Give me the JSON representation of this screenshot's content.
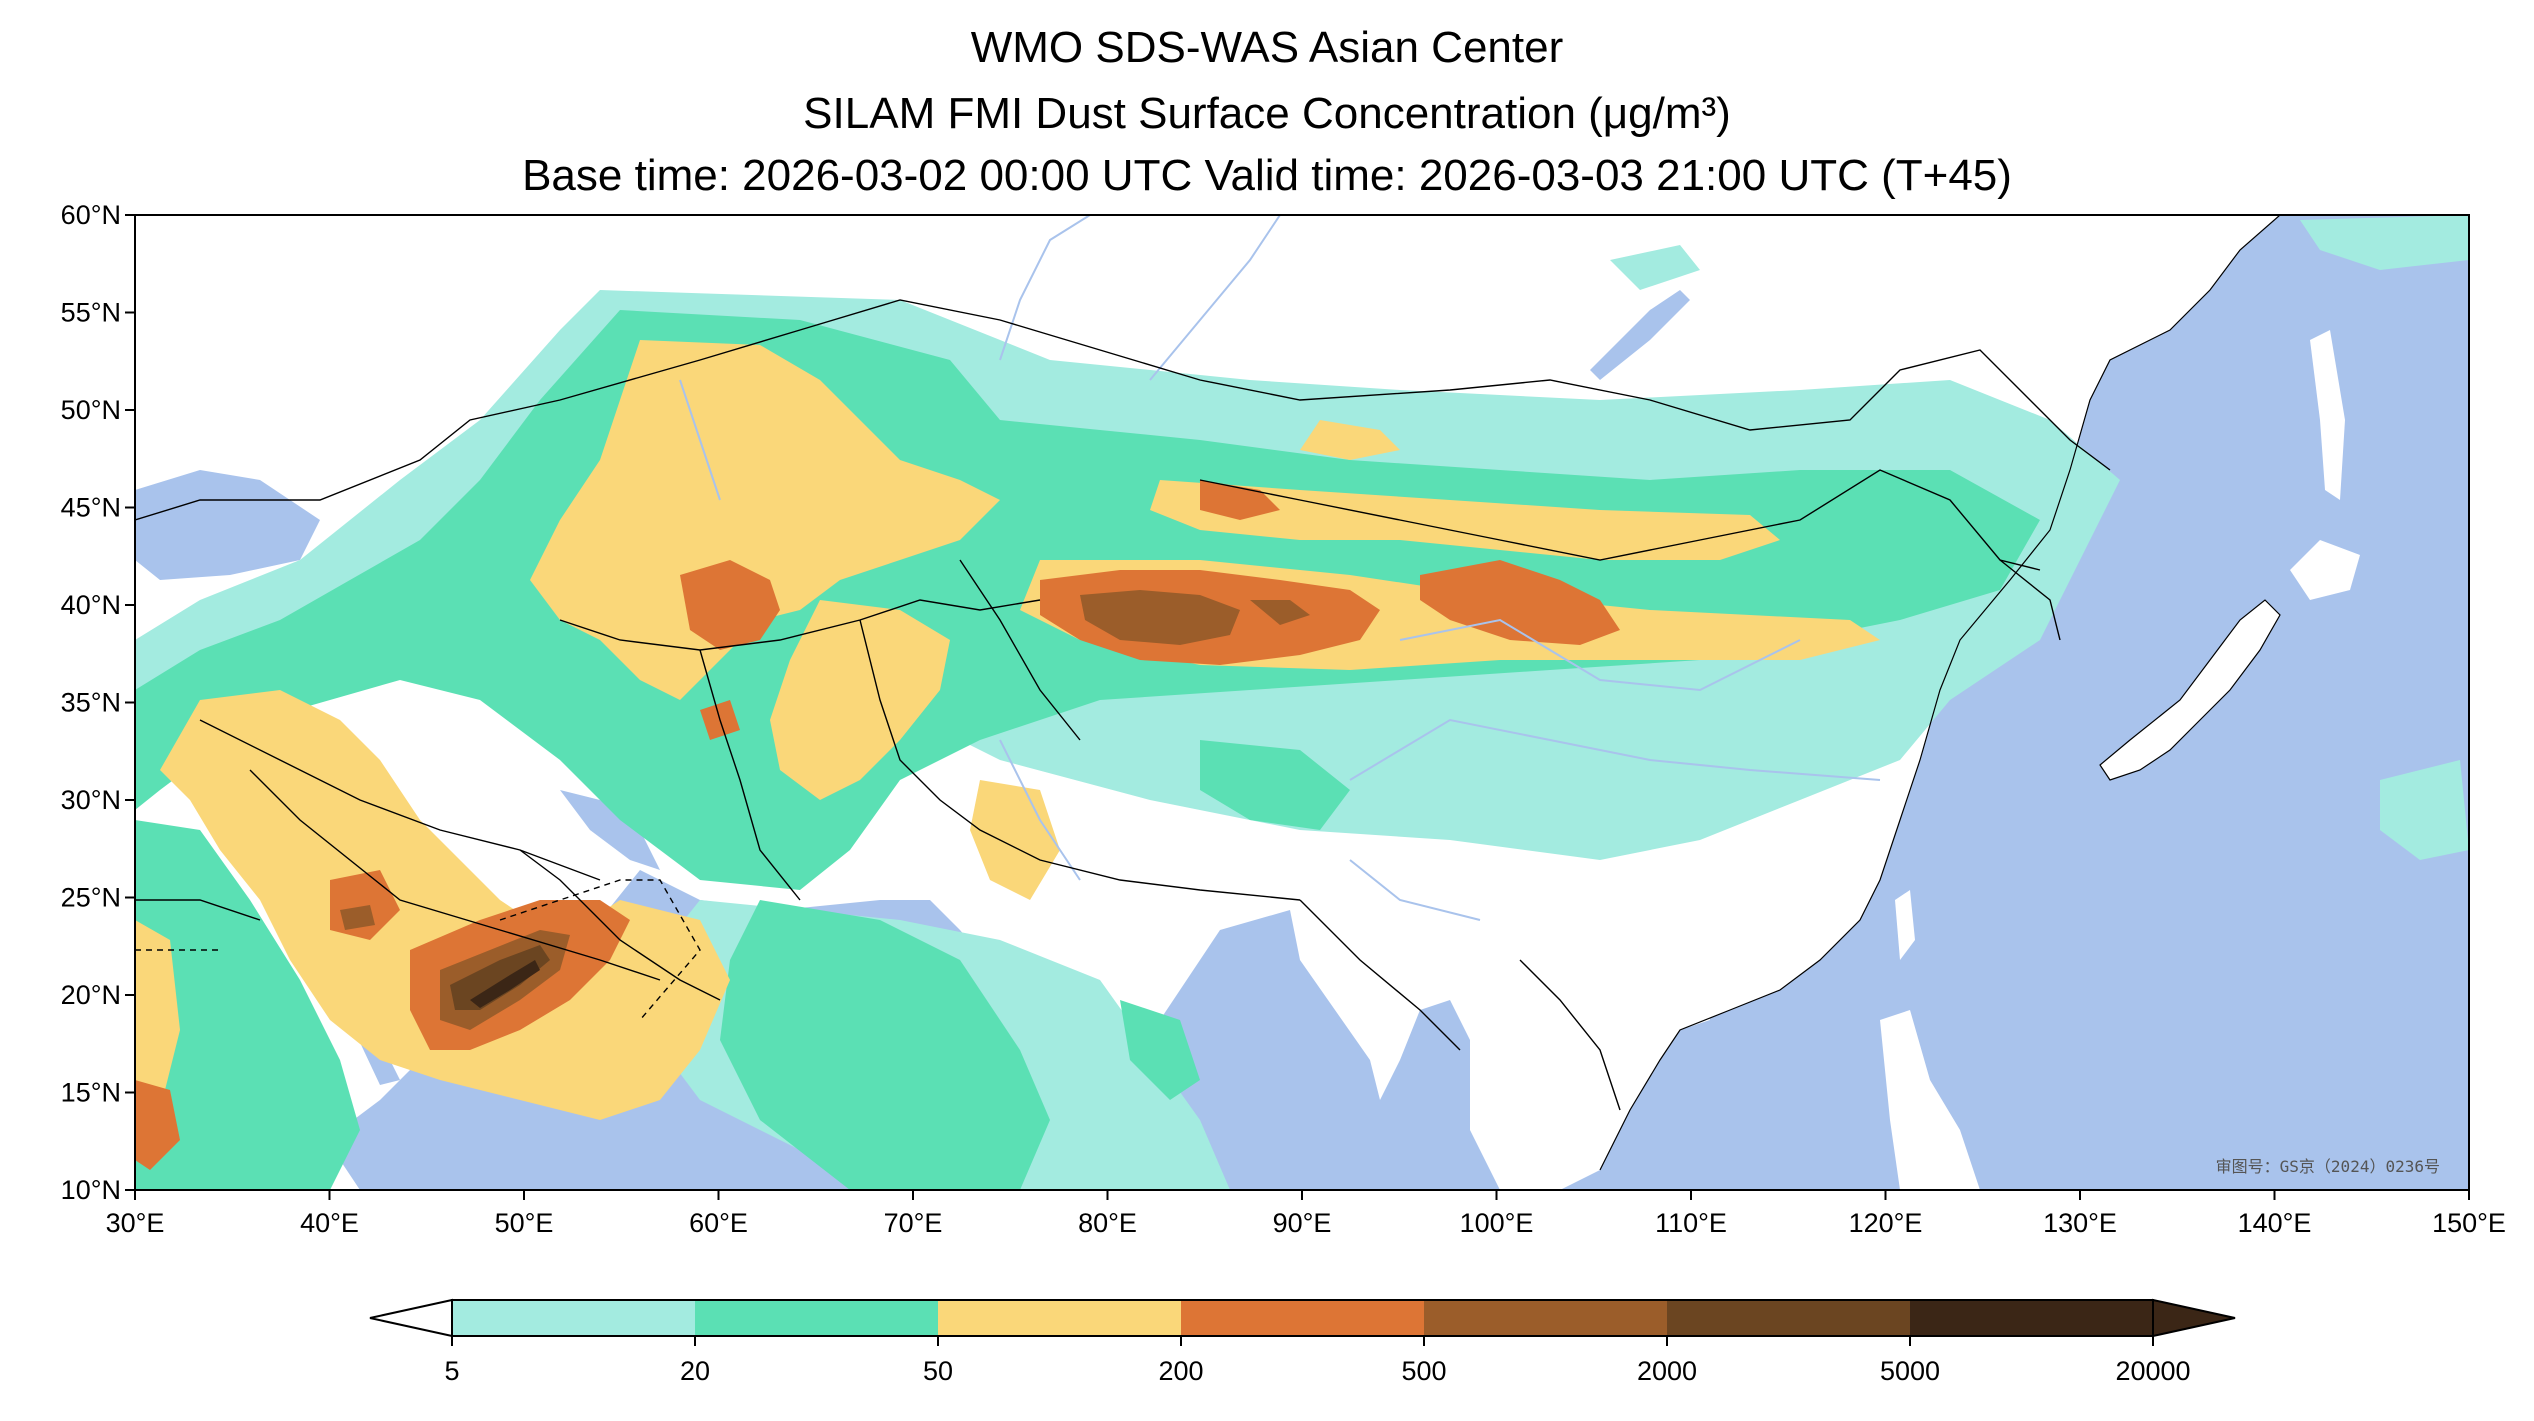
{
  "title": {
    "line1": "WMO SDS-WAS Asian Center",
    "line2": "SILAM FMI Dust Surface Concentration (μg/m³)",
    "line3": "Base time: 2026-03-02 00:00 UTC Valid time: 2026-03-03 21:00 UTC (T+45)"
  },
  "map": {
    "lon_range": [
      30,
      150
    ],
    "lat_range": [
      10,
      60
    ],
    "lon_ticks": [
      "30°E",
      "40°E",
      "50°E",
      "60°E",
      "70°E",
      "80°E",
      "90°E",
      "100°E",
      "110°E",
      "120°E",
      "130°E",
      "140°E",
      "150°E"
    ],
    "lat_ticks": [
      "60°N",
      "55°N",
      "50°N",
      "45°N",
      "40°N",
      "35°N",
      "30°N",
      "25°N",
      "20°N",
      "15°N",
      "10°N"
    ],
    "watermark": "审图号：GS京（2024）0236号",
    "ocean_color": "#a9c3ec",
    "land_color": "#ffffff"
  },
  "colorbar": {
    "levels": [
      "5",
      "20",
      "50",
      "200",
      "500",
      "2000",
      "5000",
      "20000"
    ],
    "colors": [
      "#a3ebe0",
      "#5be0b4",
      "#fad779",
      "#dd7535",
      "#9b5d2a",
      "#6b4521",
      "#3b2616"
    ]
  }
}
